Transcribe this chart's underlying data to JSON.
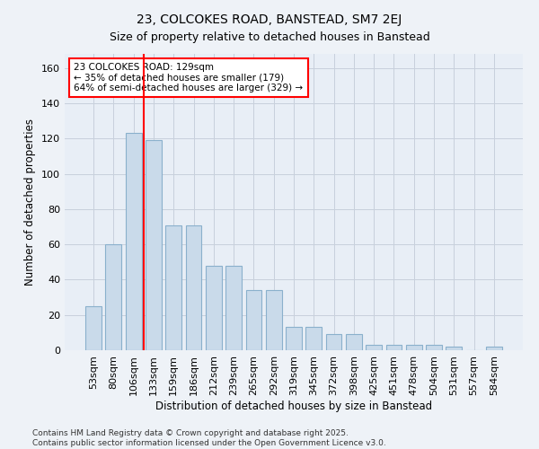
{
  "title": "23, COLCOKES ROAD, BANSTEAD, SM7 2EJ",
  "subtitle": "Size of property relative to detached houses in Banstead",
  "xlabel": "Distribution of detached houses by size in Banstead",
  "ylabel": "Number of detached properties",
  "categories": [
    "53sqm",
    "80sqm",
    "106sqm",
    "133sqm",
    "159sqm",
    "186sqm",
    "212sqm",
    "239sqm",
    "265sqm",
    "292sqm",
    "319sqm",
    "345sqm",
    "372sqm",
    "398sqm",
    "425sqm",
    "451sqm",
    "478sqm",
    "504sqm",
    "531sqm",
    "557sqm",
    "584sqm"
  ],
  "values": [
    25,
    60,
    123,
    119,
    71,
    71,
    48,
    48,
    34,
    34,
    13,
    13,
    9,
    9,
    3,
    3,
    3,
    3,
    2,
    0,
    2
  ],
  "bar_color": "#c9daea",
  "bar_edgecolor": "#8ab0cc",
  "redline_index": 2.5,
  "annotation_text": "23 COLCOKES ROAD: 129sqm\n← 35% of detached houses are smaller (179)\n64% of semi-detached houses are larger (329) →",
  "annotation_box_color": "white",
  "annotation_box_edgecolor": "red",
  "redline_color": "red",
  "ylim": [
    0,
    168
  ],
  "yticks": [
    0,
    20,
    40,
    60,
    80,
    100,
    120,
    140,
    160
  ],
  "title_fontsize": 10,
  "subtitle_fontsize": 9,
  "xlabel_fontsize": 8.5,
  "ylabel_fontsize": 8.5,
  "tick_fontsize": 8,
  "annotation_fontsize": 7.5,
  "footer_text": "Contains HM Land Registry data © Crown copyright and database right 2025.\nContains public sector information licensed under the Open Government Licence v3.0.",
  "footer_fontsize": 6.5,
  "background_color": "#eef2f7",
  "plot_background_color": "#e8eef6",
  "grid_color": "#c8d0dc"
}
